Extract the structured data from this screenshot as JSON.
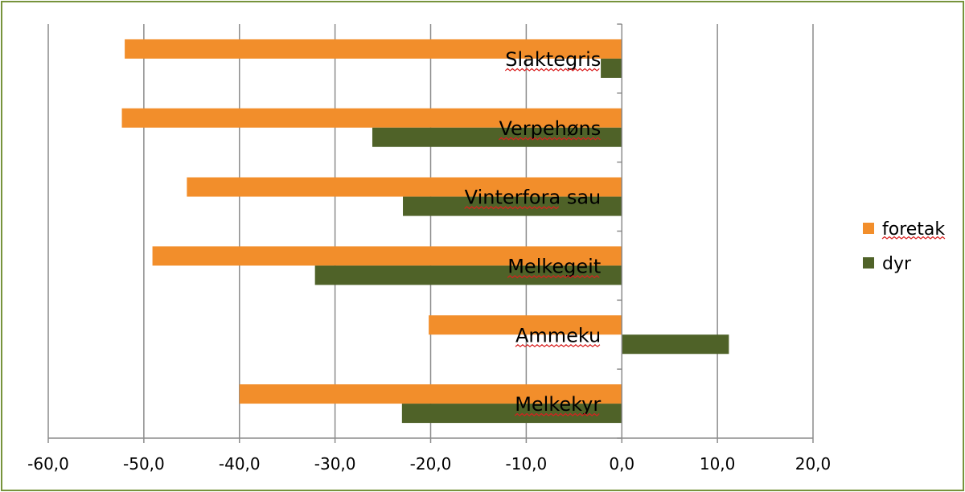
{
  "chart_data": {
    "type": "bar",
    "orientation": "horizontal",
    "categories": [
      "Melkekyr",
      "Ammeku",
      "Melkegeit",
      "Vinterfora sau",
      "Verpehøns",
      "Slaktegris"
    ],
    "series": [
      {
        "name": "foretak",
        "color": "#f28e2b",
        "values": [
          -40.0,
          -20.2,
          -49.1,
          -45.5,
          -52.3,
          -52.0
        ]
      },
      {
        "name": "dyr",
        "color": "#4f6228",
        "values": [
          -23.0,
          11.2,
          -32.1,
          -22.9,
          -26.1,
          -2.2
        ]
      }
    ],
    "xlim": [
      -60,
      20
    ],
    "xticks": [
      "-60,0",
      "-50,0",
      "-40,0",
      "-30,0",
      "-20,0",
      "-10,0",
      "0,0",
      "10,0",
      "20,0"
    ],
    "xtick_values": [
      -60,
      -50,
      -40,
      -30,
      -20,
      -10,
      0,
      10,
      20
    ],
    "grid": true,
    "legend_position": "right",
    "spellcheck_underlined": [
      "Slaktegris",
      "Verpehøns",
      "Vinterfora",
      "Melkegeit",
      "Ammeku",
      "Melkekyr",
      "foretak"
    ],
    "title": "",
    "xlabel": "",
    "ylabel": ""
  }
}
